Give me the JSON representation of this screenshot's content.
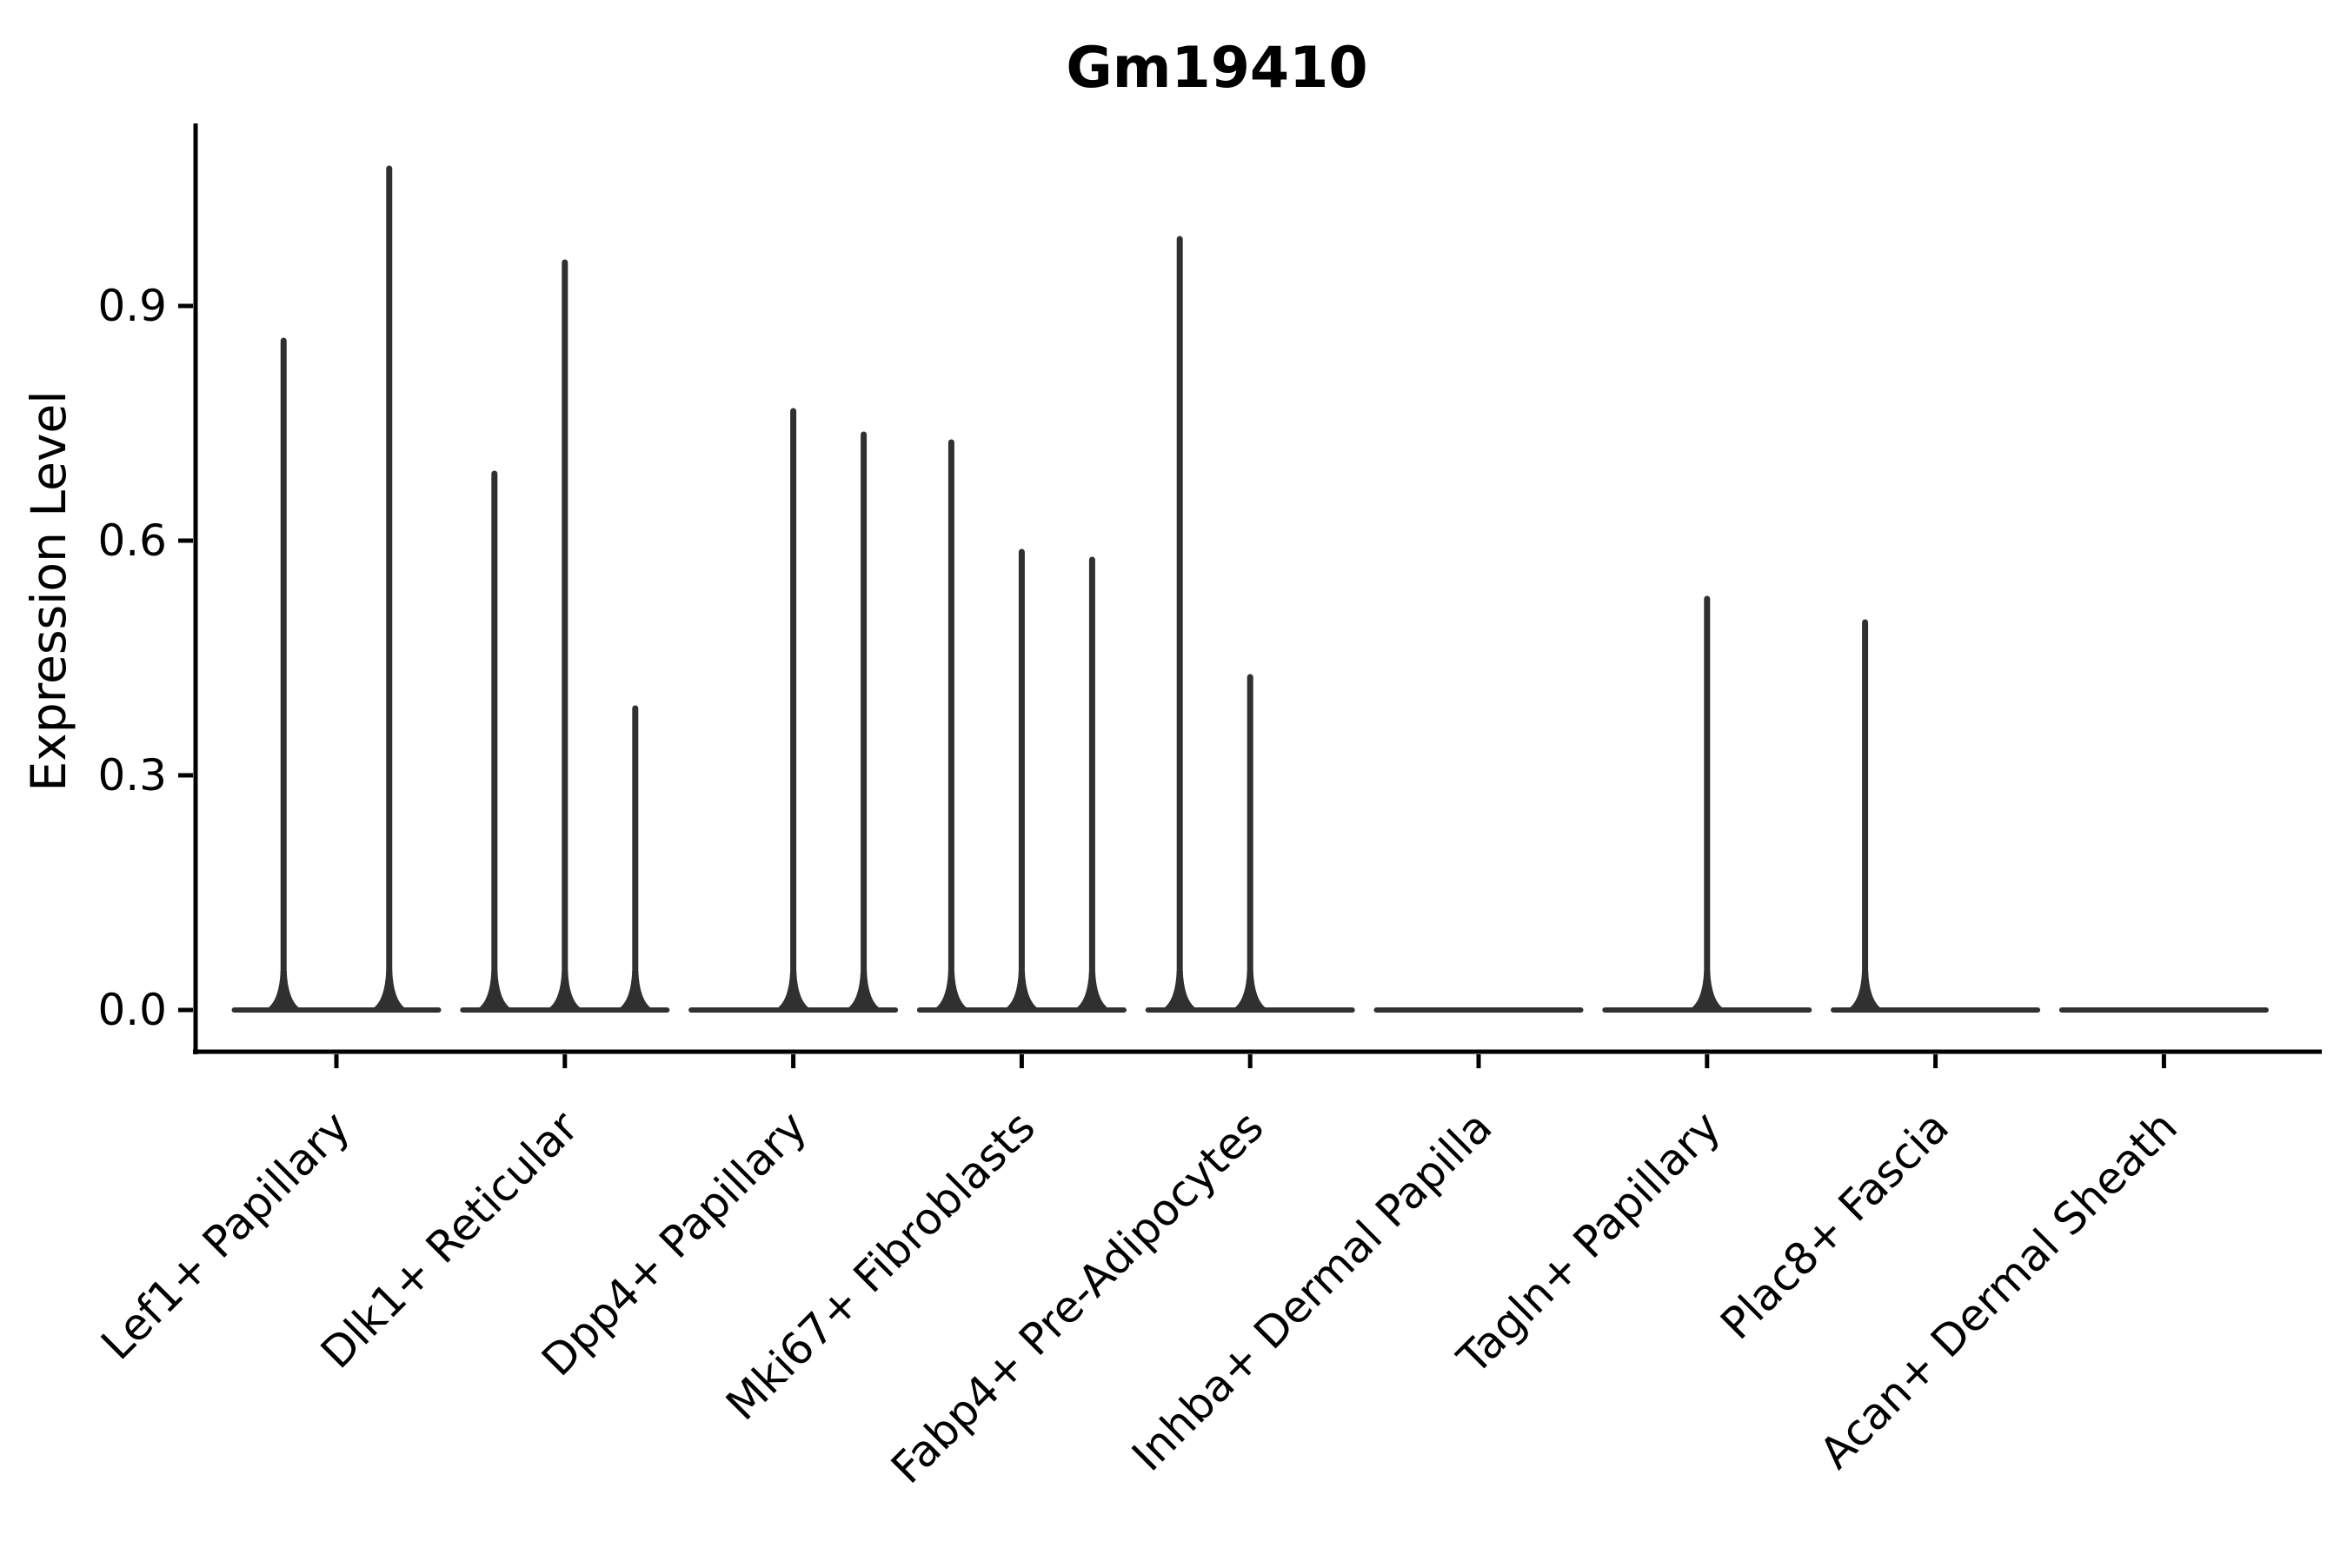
{
  "page": {
    "background": "#ffffff"
  },
  "chart_data": {
    "type": "violin",
    "title": "Gm19410",
    "xlabel": "",
    "ylabel": "Expression Level",
    "ylim": [
      -0.05,
      1.13
    ],
    "grid": false,
    "legend": "none",
    "ink_color": "#303030",
    "axis_color": "#000000",
    "yticks": [
      {
        "value": 0.0,
        "label": "0.0"
      },
      {
        "value": 0.3,
        "label": "0.3"
      },
      {
        "value": 0.6,
        "label": "0.6"
      },
      {
        "value": 0.9,
        "label": "0.9"
      }
    ],
    "categories": [
      {
        "label": "Lef1+ Papillary",
        "violin_maxima": [
          0.86,
          1.08
        ]
      },
      {
        "label": "Dlk1+ Reticular",
        "violin_maxima": [
          0.69,
          0.96,
          0.39
        ]
      },
      {
        "label": "Dpp4+ Papillary",
        "violin_maxima": [
          0,
          0.77,
          0.74
        ]
      },
      {
        "label": "Mki67+ Fibroblasts",
        "violin_maxima": [
          0.73,
          0.59,
          0.58
        ]
      },
      {
        "label": "Fabp4+ Pre-Adipocytes",
        "violin_maxima": [
          0.99,
          0.43,
          0
        ]
      },
      {
        "label": "Inhba+ Dermal Papilla",
        "violin_maxima": [
          0,
          0,
          0
        ]
      },
      {
        "label": "Tagln+ Papillary",
        "violin_maxima": [
          0,
          0.53,
          0
        ]
      },
      {
        "label": "Plac8+ Fascia",
        "violin_maxima": [
          0.5,
          0,
          0
        ]
      },
      {
        "label": "Acan+ Dermal Sheath",
        "violin_maxima": [
          0,
          0,
          0
        ]
      }
    ]
  }
}
